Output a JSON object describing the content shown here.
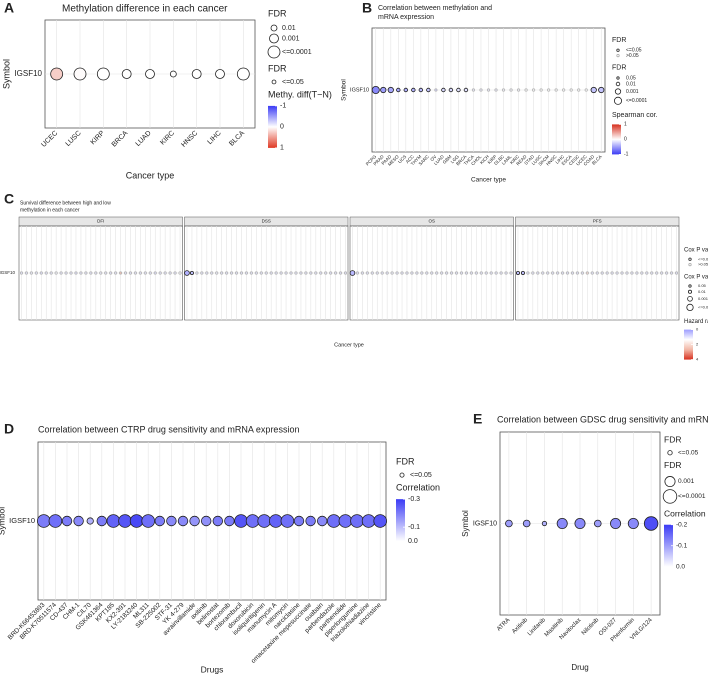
{
  "chart_data": [
    {
      "type": "dot",
      "panel_label": "A",
      "title": [
        "Methylation difference in each cancer"
      ],
      "xlabel": "Cancer type",
      "ylabel": "Symbol",
      "gene": "IGSF10",
      "categories": [
        "UCEC",
        "LUSC",
        "KIRP",
        "BRCA",
        "LUAD",
        "KIRC",
        "HNSC",
        "LIHC",
        "BLCA"
      ],
      "values": [
        0.25,
        0.02,
        0,
        0,
        0,
        0,
        0,
        0,
        0
      ],
      "sizes": [
        0.0001,
        0.0001,
        0.0001,
        0.001,
        0.001,
        0.01,
        0.001,
        0.001,
        0.0001
      ],
      "size_legends": [
        {
          "title": "FDR",
          "items": [
            0.01,
            0.001,
            {
              "value": 0.0001,
              "label": "<=0.0001"
            }
          ]
        },
        {
          "title": "FDR",
          "items": [
            {
              "value": 0.05,
              "label": "<=0.05"
            }
          ]
        }
      ],
      "cbar": {
        "title": "Methy. diff(T−N)",
        "lim": [
          -1,
          1
        ],
        "ticks": [
          -1,
          0,
          1
        ],
        "colors": [
          "#3b3bf5",
          "#ffffff",
          "#e03a24"
        ]
      }
    },
    {
      "type": "dot",
      "panel_label": "B",
      "title": [
        "Correlation between methylation and",
        "mRNA expression"
      ],
      "xlabel": "Cancer type",
      "ylabel": "Symbol",
      "gene": "IGSF10",
      "categories": [
        "PCPG",
        "PRAD",
        "PAAD",
        "MESO",
        "UCS",
        "ACC",
        "THYM",
        "SARC",
        "OV",
        "LUAD",
        "GBM",
        "LGG",
        "BRCA",
        "THCA",
        "CHOL",
        "KICH",
        "KIRP",
        "DLBC",
        "LAML",
        "KIRC",
        "READ",
        "STAD",
        "LUSC",
        "SKCM",
        "HNSC",
        "LIHC",
        "ESCA",
        "CESC",
        "UCEC",
        "COAD",
        "BLCA"
      ],
      "values": [
        -0.6,
        -0.5,
        -0.45,
        -0.45,
        -0.4,
        -0.4,
        -0.35,
        -0.3,
        -0.25,
        -0.2,
        -0.2,
        -0.15,
        -0.15,
        -0.1,
        -0.1,
        -0.1,
        -0.1,
        -0.05,
        -0.05,
        -0.05,
        0,
        0,
        0,
        0,
        0,
        0,
        0,
        0,
        0,
        -0.3,
        -0.3
      ],
      "sizes": [
        0.0001,
        0.001,
        0.001,
        0.01,
        0.01,
        0.01,
        0.01,
        0.01,
        0.5,
        0.01,
        0.01,
        0.01,
        0.01,
        0.5,
        0.5,
        0.5,
        0.5,
        0.5,
        0.5,
        0.5,
        0.5,
        0.5,
        0.5,
        0.5,
        0.5,
        0.5,
        0.5,
        0.5,
        0.5,
        0.001,
        0.001
      ],
      "size_legends": [
        {
          "title": "FDR",
          "items": [
            {
              "value": 0.05,
              "label": "<=0.05"
            },
            {
              "value": 0.5,
              "label": ">0.05"
            }
          ]
        },
        {
          "title": "FDR",
          "items": [
            0.05,
            0.01,
            0.001,
            {
              "value": 0.0001,
              "label": "<=0.0001"
            }
          ]
        }
      ],
      "cbar": {
        "title": "Spearman cor.",
        "lim": [
          1,
          -1
        ],
        "ticks": [
          1,
          0,
          -1
        ],
        "colors": [
          "#d7301f",
          "#ffffff",
          "#3b3bf5"
        ]
      }
    },
    {
      "type": "facet_dot",
      "panel_label": "C",
      "title": [
        "Survival difference between high and low",
        "methylation in each cancer"
      ],
      "xlabel": "Cancer type",
      "ylabel": "Symbol",
      "gene": "IGSF10",
      "facets": [
        {
          "strip": "DFI",
          "values": [
            1,
            1,
            1.1,
            1,
            0.9,
            1,
            1,
            1.2,
            1,
            1,
            1,
            0.9,
            1,
            1,
            1,
            1,
            1.1,
            1,
            1,
            1,
            2.5,
            1,
            1,
            1,
            1,
            1,
            1,
            0.9,
            1,
            1,
            1,
            1,
            1.3
          ],
          "sizes": [
            0.5,
            0.5,
            0.5,
            0.5,
            0.5,
            0.5,
            0.5,
            0.5,
            0.5,
            0.5,
            0.5,
            0.5,
            0.5,
            0.5,
            0.5,
            0.5,
            0.5,
            0.5,
            0.5,
            0.5,
            0.5,
            0.5,
            0.5,
            0.5,
            0.5,
            0.5,
            0.5,
            0.5,
            0.5,
            0.5,
            0.5,
            0.5,
            0.5
          ]
        },
        {
          "strip": "DSS",
          "values": [
            0.3,
            0.5,
            1,
            1,
            1,
            1,
            1.1,
            1,
            1,
            1,
            1,
            1,
            1,
            1,
            1,
            1,
            1,
            1,
            1,
            1,
            1,
            1,
            1,
            1,
            1,
            1,
            1,
            1,
            1,
            1,
            1,
            1,
            1
          ],
          "sizes": [
            0.001,
            0.01,
            0.5,
            0.5,
            0.5,
            0.5,
            0.5,
            0.5,
            0.5,
            0.5,
            0.5,
            0.5,
            0.5,
            0.5,
            0.5,
            0.5,
            0.5,
            0.5,
            0.5,
            0.5,
            0.5,
            0.5,
            0.5,
            0.5,
            0.5,
            0.5,
            0.5,
            0.5,
            0.5,
            0.5,
            0.5,
            0.5,
            0.5
          ]
        },
        {
          "strip": "OS",
          "values": [
            0.4,
            1,
            1,
            1,
            1,
            1,
            1,
            1,
            1.1,
            1,
            1,
            1,
            1,
            1,
            1,
            1,
            1,
            1,
            1,
            1,
            1,
            1,
            1,
            1,
            1,
            1,
            1,
            1,
            1,
            1,
            1,
            1,
            1
          ],
          "sizes": [
            0.001,
            0.5,
            0.5,
            0.5,
            0.5,
            0.5,
            0.5,
            0.5,
            0.5,
            0.5,
            0.5,
            0.5,
            0.5,
            0.5,
            0.5,
            0.5,
            0.5,
            0.5,
            0.5,
            0.5,
            0.5,
            0.5,
            0.5,
            0.5,
            0.5,
            0.5,
            0.5,
            0.5,
            0.5,
            0.5,
            0.5,
            0.5,
            0.5
          ]
        },
        {
          "strip": "PFS",
          "values": [
            0.5,
            0.5,
            1,
            1,
            1,
            1,
            1,
            1,
            1,
            1,
            1,
            1,
            1,
            1,
            2,
            1,
            1,
            1,
            1,
            1,
            1,
            1,
            1,
            1,
            1,
            1,
            1,
            1,
            1,
            1,
            1,
            1,
            1
          ],
          "sizes": [
            0.01,
            0.01,
            0.5,
            0.5,
            0.5,
            0.5,
            0.5,
            0.5,
            0.5,
            0.5,
            0.5,
            0.5,
            0.5,
            0.5,
            0.5,
            0.5,
            0.5,
            0.5,
            0.5,
            0.5,
            0.5,
            0.5,
            0.5,
            0.5,
            0.5,
            0.5,
            0.5,
            0.5,
            0.5,
            0.5,
            0.5,
            0.5,
            0.5
          ]
        }
      ],
      "size_legends": [
        {
          "title": "Cox P value",
          "items": [
            {
              "value": 0.05,
              "label": "<=0.05"
            },
            {
              "value": 0.5,
              "label": ">0.05"
            }
          ]
        },
        {
          "title": "Cox P value",
          "items": [
            0.05,
            0.01,
            0.001,
            {
              "value": 0.0001,
              "label": "<=0.0001"
            }
          ]
        }
      ],
      "cbar": {
        "title": "Hazard ratio",
        "lim": [
          0,
          4
        ],
        "ticks": [
          0,
          2,
          4
        ],
        "colors": [
          "#9c9cff",
          "#ffffff",
          "#f2b7a6",
          "#d7301f"
        ]
      }
    },
    {
      "type": "dot",
      "panel_label": "D",
      "title": [
        "Correlation between CTRP drug sensitivity and mRNA expression"
      ],
      "xlabel": "Drugs",
      "ylabel": "Symbol",
      "gene": "IGSF10",
      "categories": [
        "BRD-K66453893",
        "BRD-K70511574",
        "CD-437",
        "CHM-1",
        "CIL70",
        "GSK461364",
        "KPT185",
        "KX2-391",
        "LY-2183240",
        "ML311",
        "SB-225002",
        "STF-31",
        "YK 4-279",
        "avrainvillamide",
        "axitinib",
        "belinostat",
        "bortezomib",
        "chlorambucil",
        "doxorubicin",
        "isoliquiritigenin",
        "manumycin A",
        "mitomycin",
        "narciclasine",
        "omacetaxine mepesuccinate",
        "ouabain",
        "parbendazole",
        "parthenolide",
        "piperlongumine",
        "triazolothiadiazine",
        "vincristine"
      ],
      "values": [
        -0.2,
        -0.22,
        -0.2,
        -0.18,
        -0.12,
        -0.2,
        -0.24,
        -0.26,
        -0.28,
        -0.22,
        -0.2,
        -0.18,
        -0.18,
        -0.16,
        -0.17,
        -0.2,
        -0.2,
        -0.26,
        -0.22,
        -0.22,
        -0.24,
        -0.22,
        -0.2,
        -0.2,
        -0.18,
        -0.22,
        -0.22,
        -0.22,
        -0.22,
        -0.26
      ],
      "sizes": [
        0.0001,
        0.0001,
        0.001,
        0.001,
        0.01,
        0.001,
        0.0001,
        0.0001,
        0.0001,
        0.0001,
        0.001,
        0.001,
        0.001,
        0.001,
        0.001,
        0.001,
        0.001,
        0.0001,
        0.0001,
        0.0001,
        0.0001,
        0.0001,
        0.001,
        0.001,
        0.001,
        0.0001,
        0.0001,
        0.0001,
        0.0001,
        0.0001
      ],
      "size_legends": [
        {
          "title": "FDR",
          "items": [
            {
              "value": 0.05,
              "label": "<=0.05"
            }
          ]
        }
      ],
      "cbar": {
        "title": "Correlation",
        "lim": [
          -0.3,
          0
        ],
        "ticks": [
          -0.3,
          -0.1,
          {
            "value": 0,
            "label": "0.0"
          }
        ],
        "colors": [
          "#3b3bf5",
          "#ffffff"
        ]
      }
    },
    {
      "type": "dot",
      "panel_label": "E",
      "title": [
        "Correlation between GDSC drug sensitivity and mRNA expression"
      ],
      "xlabel": "Drug",
      "ylabel": "Symbol",
      "gene": "IGSF10",
      "categories": [
        "ATRA",
        "Axitinib",
        "Linifanib",
        "Masitinib",
        "Navitoclax",
        "Nilotinib",
        "OSI-027",
        "Phenformin",
        "VNLG/124"
      ],
      "values": [
        -0.1,
        -0.1,
        -0.08,
        -0.12,
        -0.12,
        -0.1,
        -0.12,
        -0.12,
        -0.18
      ],
      "sizes": [
        0.01,
        0.01,
        0.05,
        0.001,
        0.001,
        0.01,
        0.001,
        0.001,
        0.0001
      ],
      "size_legends": [
        {
          "title": "FDR",
          "items": [
            {
              "value": 0.05,
              "label": "<=0.05"
            }
          ]
        },
        {
          "title": "FDR",
          "items": [
            0.001,
            {
              "value": 0.0001,
              "label": "<=0.0001"
            }
          ]
        }
      ],
      "cbar": {
        "title": "Correlation",
        "lim": [
          -0.2,
          0
        ],
        "ticks": [
          -0.2,
          -0.1,
          {
            "value": 0,
            "label": "0.0"
          }
        ],
        "colors": [
          "#3b3bf5",
          "#ffffff"
        ]
      }
    }
  ]
}
